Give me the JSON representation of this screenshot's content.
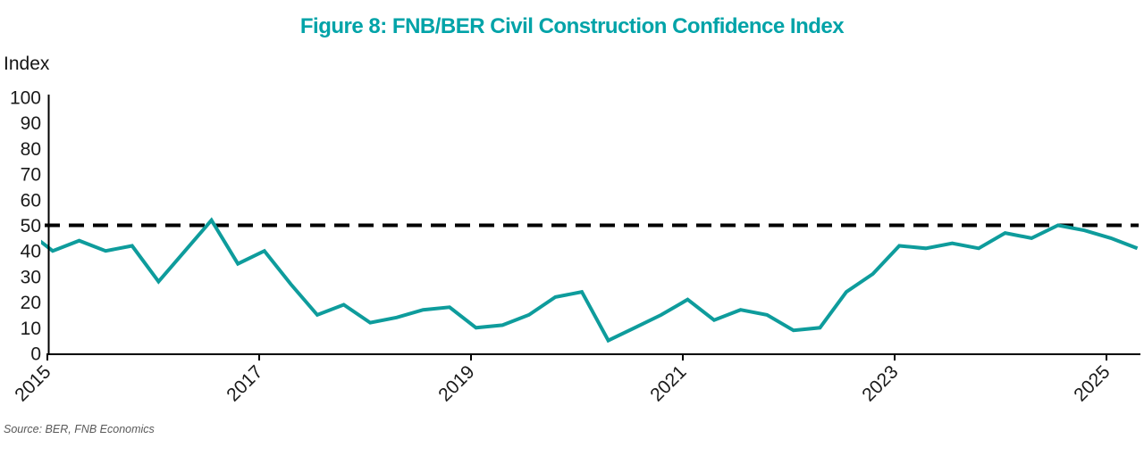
{
  "chart_data": {
    "type": "line",
    "title": "Figure 8: FNB/BER Civil Construction Confidence Index",
    "ylabel": "Index",
    "source": "Source: BER, FNB Economics",
    "ylim": [
      0,
      100
    ],
    "y_ticks": [
      0,
      10,
      20,
      30,
      40,
      50,
      60,
      70,
      80,
      90,
      100
    ],
    "x_ticks": [
      {
        "label": "2015",
        "year": 2015
      },
      {
        "label": "2017",
        "year": 2017
      },
      {
        "label": "2019",
        "year": 2019
      },
      {
        "label": "2021",
        "year": 2021
      },
      {
        "label": "2023",
        "year": 2023
      },
      {
        "label": "2025",
        "year": 2025
      }
    ],
    "grid": "off",
    "legend": "none",
    "reference_line": {
      "value": 50,
      "style": "dashed",
      "color": "#000000"
    },
    "series": [
      {
        "name": "FNB/BER Civil Construction Confidence Index",
        "color": "#0E9C9C",
        "points": [
          [
            "2014Q4",
            48
          ],
          [
            "2015Q1",
            40
          ],
          [
            "2015Q2",
            44
          ],
          [
            "2015Q3",
            40
          ],
          [
            "2015Q4",
            42
          ],
          [
            "2016Q1",
            28
          ],
          [
            "2016Q2",
            40
          ],
          [
            "2016Q3",
            52
          ],
          [
            "2016Q4",
            35
          ],
          [
            "2017Q1",
            40
          ],
          [
            "2017Q2",
            27
          ],
          [
            "2017Q3",
            15
          ],
          [
            "2017Q4",
            19
          ],
          [
            "2018Q1",
            12
          ],
          [
            "2018Q2",
            14
          ],
          [
            "2018Q3",
            17
          ],
          [
            "2018Q4",
            18
          ],
          [
            "2019Q1",
            10
          ],
          [
            "2019Q2",
            11
          ],
          [
            "2019Q3",
            15
          ],
          [
            "2019Q4",
            22
          ],
          [
            "2020Q1",
            24
          ],
          [
            "2020Q2",
            5
          ],
          [
            "2020Q3",
            10
          ],
          [
            "2020Q4",
            15
          ],
          [
            "2021Q1",
            21
          ],
          [
            "2021Q2",
            13
          ],
          [
            "2021Q3",
            17
          ],
          [
            "2021Q4",
            15
          ],
          [
            "2022Q1",
            9
          ],
          [
            "2022Q2",
            10
          ],
          [
            "2022Q3",
            24
          ],
          [
            "2022Q4",
            31
          ],
          [
            "2023Q1",
            42
          ],
          [
            "2023Q2",
            41
          ],
          [
            "2023Q3",
            43
          ],
          [
            "2023Q4",
            41
          ],
          [
            "2024Q1",
            47
          ],
          [
            "2024Q2",
            45
          ],
          [
            "2024Q3",
            50
          ],
          [
            "2024Q4",
            48
          ],
          [
            "2025Q1",
            45
          ],
          [
            "2025Q2",
            41
          ]
        ]
      }
    ],
    "colors": {
      "title": "#00A3A8",
      "line": "#0E9C9C",
      "axis": "#000000",
      "tick_text": "#1A1A1A",
      "source_text": "#595959"
    }
  }
}
